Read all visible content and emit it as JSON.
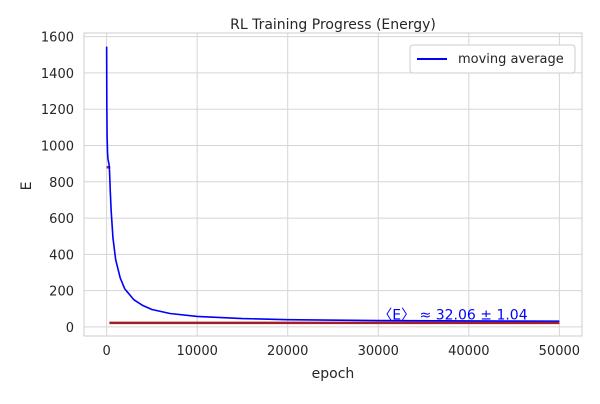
{
  "chart_data": {
    "type": "line",
    "title": "RL Training Progress (Energy)",
    "xlabel": "epoch",
    "ylabel": "E",
    "xlim": [
      -2500,
      52500
    ],
    "ylim": [
      -50,
      1620
    ],
    "x_ticks": [
      0,
      10000,
      20000,
      30000,
      40000,
      50000
    ],
    "y_ticks": [
      0,
      200,
      400,
      600,
      800,
      1000,
      1200,
      1400,
      1600
    ],
    "grid": true,
    "legend_position": "top-right",
    "series": [
      {
        "name": "moving average",
        "color": "#0000ff",
        "x": [
          0,
          20,
          50,
          100,
          150,
          200,
          250,
          300,
          350,
          400,
          500,
          700,
          1000,
          1500,
          2000,
          3000,
          4000,
          5000,
          7000,
          10000,
          15000,
          20000,
          30000,
          40000,
          50000
        ],
        "y": [
          1545,
          1230,
          1050,
          960,
          925,
          912,
          900,
          880,
          820,
          750,
          640,
          490,
          370,
          270,
          210,
          150,
          118,
          96,
          74,
          58,
          46,
          40,
          35,
          33,
          32
        ]
      }
    ],
    "reference_lines": [
      {
        "color": "#a0202a",
        "x": [
          0,
          400
        ],
        "y": [
          880,
          880
        ]
      },
      {
        "color": "#a0202a",
        "x": [
          300,
          50000
        ],
        "y": [
          22,
          22
        ]
      }
    ],
    "annotation": {
      "text": "〈E〉 ≈ 32.06 ± 1.04",
      "x": 30000,
      "y": 40,
      "color": "#0000ff"
    }
  }
}
